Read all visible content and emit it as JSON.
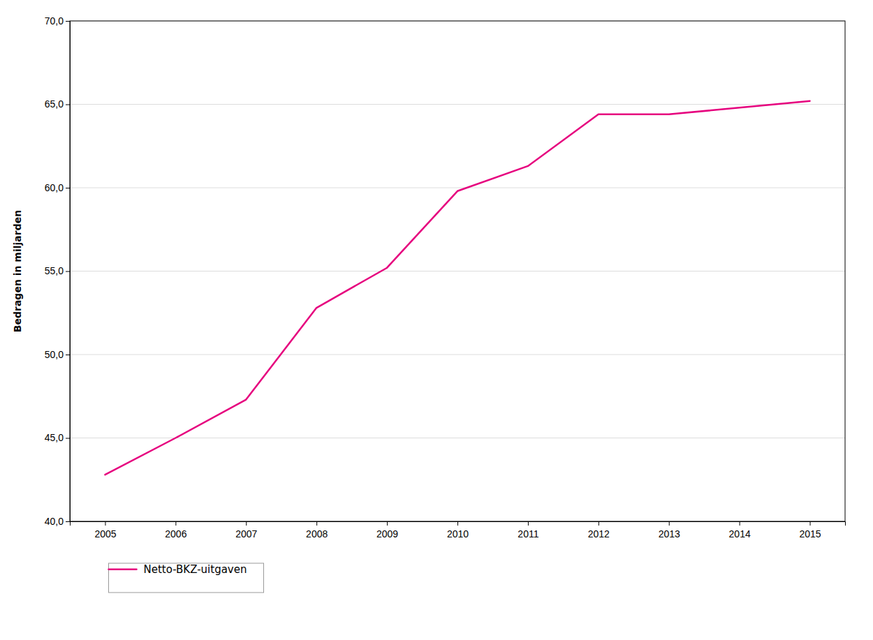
{
  "chart_data": {
    "type": "line",
    "x": [
      2005,
      2006,
      2007,
      2008,
      2009,
      2010,
      2011,
      2012,
      2013,
      2014,
      2015
    ],
    "series": [
      {
        "name": "Netto-BKZ-uitgaven",
        "color": "#E6007E",
        "values": [
          42.8,
          45.0,
          47.3,
          52.8,
          55.2,
          59.8,
          61.3,
          64.4,
          64.4,
          64.8,
          65.2
        ]
      }
    ],
    "ylabel": "Bedragen in miljarden",
    "xlim": [
      2004.5,
      2015.5
    ],
    "xticks": [
      2005,
      2006,
      2007,
      2008,
      2009,
      2010,
      2011,
      2012,
      2013,
      2014,
      2015
    ],
    "ylim": [
      40.0,
      70.0
    ],
    "yticks": [
      {
        "value": 40.0,
        "label": "40,0"
      },
      {
        "value": 45.0,
        "label": "45,0"
      },
      {
        "value": 50.0,
        "label": "50,0"
      },
      {
        "value": 55.0,
        "label": "55,0"
      },
      {
        "value": 60.0,
        "label": "60,0"
      },
      {
        "value": 65.0,
        "label": "65,0"
      },
      {
        "value": 70.0,
        "label": "70,0"
      }
    ],
    "grid": true,
    "legend": "lower left"
  }
}
